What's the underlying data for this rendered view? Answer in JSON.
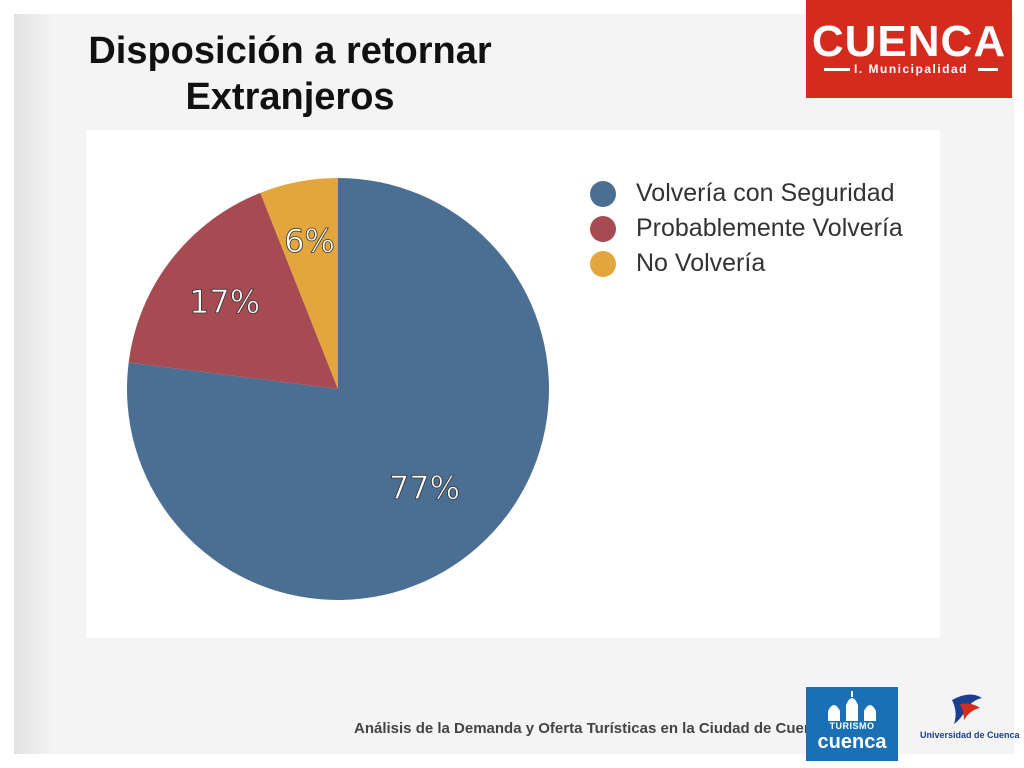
{
  "title": {
    "line1": "Disposición a retornar",
    "line2": "Extranjeros"
  },
  "logos": {
    "top_brand": "CUENCA",
    "top_sub": "I. Municipalidad",
    "turismo_small": "TURISMO",
    "turismo_brand": "cuenca",
    "university": "Universidad de Cuenca"
  },
  "footer": {
    "text": "Análisis de la Demanda y Oferta Turísticas en la Ciudad de Cuenca"
  },
  "colors": {
    "accent_red": "#d52b1e",
    "blue": "#4b6f93",
    "red": "#a74b53",
    "yellow": "#e3a63c"
  },
  "chart_data": {
    "type": "pie",
    "categories": [
      "Volvería con Seguridad",
      "Probablemente Volvería",
      "No Volvería"
    ],
    "values": [
      77,
      17,
      6
    ],
    "labels": [
      "77%",
      "17%",
      "6%"
    ],
    "colors": [
      "#4b6f93",
      "#a74b53",
      "#e3a63c"
    ],
    "legend_position": "top-right",
    "start": "12 o'clock",
    "direction": "clockwise"
  }
}
